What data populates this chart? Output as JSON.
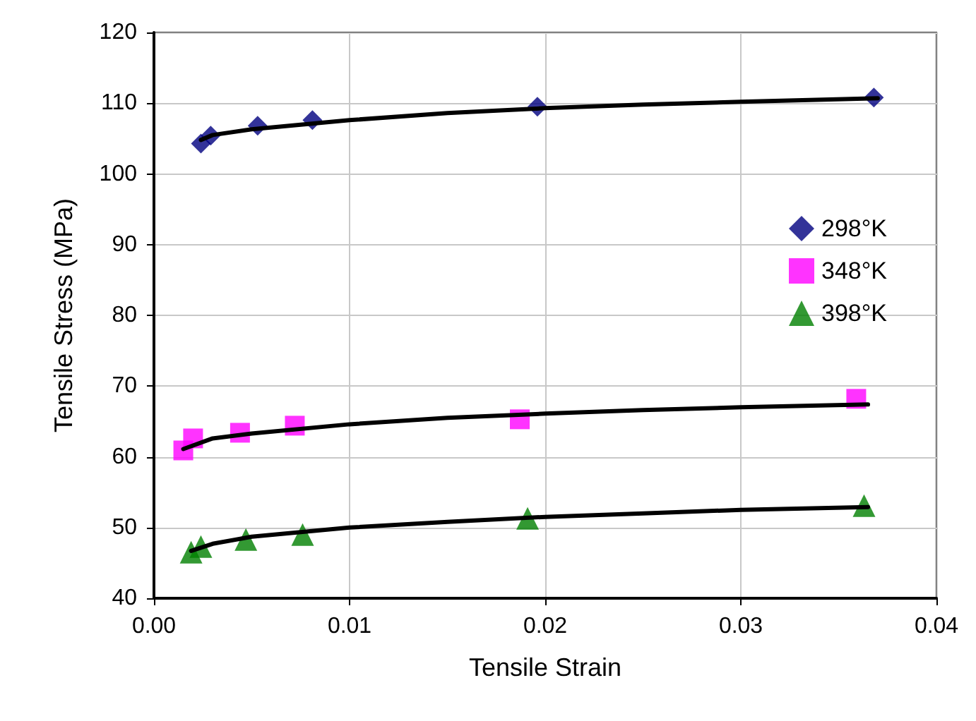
{
  "chart_data": {
    "type": "scatter",
    "xlabel": "Tensile Strain",
    "ylabel": "Tensile Stress (MPa)",
    "xlim": [
      0,
      0.04
    ],
    "xticks": [
      {
        "value": 0,
        "label": "0.00"
      },
      {
        "value": 0.01,
        "label": "0.01"
      },
      {
        "value": 0.02,
        "label": "0.02"
      },
      {
        "value": 0.03,
        "label": "0.03"
      },
      {
        "value": 0.04,
        "label": "0.04"
      }
    ],
    "ylim": [
      40,
      120
    ],
    "yticks": [
      40,
      50,
      60,
      70,
      80,
      90,
      100,
      110,
      120
    ],
    "grid": true,
    "legend": "right",
    "series": [
      {
        "name": "298°K",
        "color": "#000080",
        "marker": "diamond",
        "x": [
          0.0024,
          0.0029,
          0.0053,
          0.0081,
          0.0196,
          0.0368
        ],
        "values": [
          104.3,
          105.4,
          106.8,
          107.6,
          109.5,
          110.8
        ]
      },
      {
        "name": "348°K",
        "color": "#ff00ff",
        "marker": "square",
        "x": [
          0.0015,
          0.002,
          0.0044,
          0.0072,
          0.0187,
          0.0359
        ],
        "values": [
          60.9,
          62.6,
          63.4,
          64.4,
          65.3,
          68.2
        ]
      },
      {
        "name": "398°K",
        "color": "#008000",
        "marker": "triangle",
        "x": [
          0.0019,
          0.0024,
          0.0047,
          0.0076,
          0.0191,
          0.0363
        ],
        "values": [
          46.5,
          47.3,
          48.3,
          49.0,
          51.3,
          53.1
        ]
      },
      {
        "type": "line",
        "color": "#000000",
        "marker": "none",
        "x": [
          0.0024,
          0.003,
          0.005,
          0.01,
          0.015,
          0.02,
          0.025,
          0.03,
          0.037
        ],
        "values": [
          104.8,
          105.5,
          106.3,
          107.6,
          108.6,
          109.3,
          109.8,
          110.2,
          110.7
        ]
      },
      {
        "type": "line",
        "color": "#000000",
        "marker": "none",
        "x": [
          0.0015,
          0.003,
          0.005,
          0.01,
          0.015,
          0.02,
          0.025,
          0.03,
          0.0365
        ],
        "values": [
          61.1,
          62.6,
          63.3,
          64.6,
          65.5,
          66.1,
          66.6,
          67.0,
          67.4
        ]
      },
      {
        "type": "line",
        "color": "#000000",
        "marker": "none",
        "x": [
          0.0019,
          0.003,
          0.005,
          0.01,
          0.015,
          0.02,
          0.025,
          0.03,
          0.0365
        ],
        "values": [
          46.7,
          47.7,
          48.7,
          50.0,
          50.8,
          51.5,
          52.0,
          52.5,
          52.9
        ]
      }
    ]
  }
}
